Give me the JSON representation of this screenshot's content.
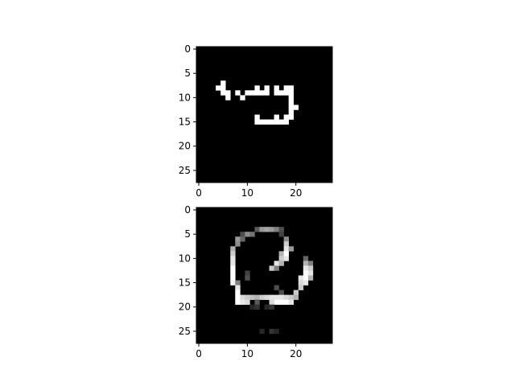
{
  "chart_data": [
    {
      "type": "heatmap",
      "title": "",
      "xlabel": "",
      "ylabel": "",
      "grid_size": [
        28,
        28
      ],
      "xlim": [
        -0.5,
        27.5
      ],
      "ylim": [
        27.5,
        -0.5
      ],
      "x_ticks": [
        0,
        10,
        20
      ],
      "y_ticks": [
        0,
        5,
        10,
        15,
        20,
        25
      ],
      "colormap": "gray",
      "background": "#000000",
      "pixels": [
        [
          7,
          5,
          1.0
        ],
        [
          8,
          4,
          1.0
        ],
        [
          8,
          5,
          1.0
        ],
        [
          9,
          5,
          1.0
        ],
        [
          9,
          6,
          1.0
        ],
        [
          9,
          8,
          1.0
        ],
        [
          9,
          10,
          1.0
        ],
        [
          9,
          11,
          1.0
        ],
        [
          9,
          12,
          1.0
        ],
        [
          9,
          13,
          1.0
        ],
        [
          9,
          14,
          1.0
        ],
        [
          9,
          16,
          1.0
        ],
        [
          9,
          17,
          1.0
        ],
        [
          9,
          18,
          1.0
        ],
        [
          9,
          19,
          1.0
        ],
        [
          8,
          12,
          1.0
        ],
        [
          8,
          14,
          1.0
        ],
        [
          8,
          16,
          1.0
        ],
        [
          8,
          18,
          1.0
        ],
        [
          8,
          19,
          1.0
        ],
        [
          10,
          6,
          1.0
        ],
        [
          10,
          9,
          1.0
        ],
        [
          10,
          19,
          1.0
        ],
        [
          11,
          19,
          1.0
        ],
        [
          12,
          19,
          1.0
        ],
        [
          12,
          20,
          1.0
        ],
        [
          13,
          19,
          1.0
        ],
        [
          14,
          12,
          1.0
        ],
        [
          14,
          16,
          1.0
        ],
        [
          14,
          18,
          1.0
        ],
        [
          14,
          19,
          1.0
        ],
        [
          15,
          12,
          1.0
        ],
        [
          15,
          13,
          1.0
        ],
        [
          15,
          14,
          1.0
        ],
        [
          15,
          15,
          1.0
        ],
        [
          15,
          16,
          1.0
        ],
        [
          15,
          17,
          1.0
        ],
        [
          15,
          18,
          1.0
        ]
      ]
    },
    {
      "type": "heatmap",
      "title": "",
      "xlabel": "",
      "ylabel": "",
      "grid_size": [
        28,
        28
      ],
      "xlim": [
        -0.5,
        27.5
      ],
      "ylim": [
        27.5,
        -0.5
      ],
      "x_ticks": [
        0,
        10,
        20
      ],
      "y_ticks": [
        0,
        5,
        10,
        15,
        20,
        25
      ],
      "colormap": "gray",
      "background": "#000000",
      "pixels": [
        [
          4,
          12,
          0.35
        ],
        [
          4,
          13,
          0.6
        ],
        [
          4,
          14,
          0.65
        ],
        [
          4,
          15,
          0.6
        ],
        [
          4,
          16,
          0.5
        ],
        [
          4,
          17,
          0.3
        ],
        [
          5,
          9,
          0.3
        ],
        [
          5,
          10,
          0.55
        ],
        [
          5,
          11,
          0.45
        ],
        [
          5,
          17,
          0.25
        ],
        [
          6,
          8,
          0.6
        ],
        [
          6,
          9,
          0.4
        ],
        [
          6,
          18,
          0.55
        ],
        [
          7,
          8,
          0.55
        ],
        [
          7,
          18,
          0.8
        ],
        [
          8,
          7,
          0.7
        ],
        [
          8,
          18,
          0.9
        ],
        [
          8,
          19,
          0.6
        ],
        [
          9,
          7,
          0.8
        ],
        [
          9,
          17,
          0.7
        ],
        [
          9,
          18,
          1.0
        ],
        [
          10,
          7,
          0.9
        ],
        [
          10,
          17,
          0.8
        ],
        [
          10,
          18,
          0.9
        ],
        [
          10,
          22,
          0.4
        ],
        [
          11,
          7,
          0.9
        ],
        [
          11,
          16,
          0.9
        ],
        [
          11,
          17,
          0.7
        ],
        [
          11,
          22,
          0.7
        ],
        [
          11,
          23,
          0.5
        ],
        [
          12,
          7,
          1.0
        ],
        [
          12,
          15,
          0.8
        ],
        [
          12,
          16,
          0.5
        ],
        [
          12,
          22,
          0.9
        ],
        [
          12,
          23,
          0.8
        ],
        [
          13,
          7,
          1.0
        ],
        [
          13,
          10,
          0.25
        ],
        [
          13,
          22,
          1.0
        ],
        [
          13,
          23,
          0.9
        ],
        [
          14,
          7,
          1.0
        ],
        [
          14,
          10,
          0.3
        ],
        [
          14,
          21,
          0.9
        ],
        [
          14,
          22,
          1.0
        ],
        [
          14,
          23,
          0.7
        ],
        [
          15,
          7,
          0.95
        ],
        [
          15,
          8,
          0.5
        ],
        [
          15,
          21,
          0.85
        ],
        [
          15,
          22,
          0.9
        ],
        [
          16,
          8,
          0.9
        ],
        [
          16,
          16,
          0.3
        ],
        [
          16,
          21,
          0.8
        ],
        [
          17,
          8,
          1.0
        ],
        [
          17,
          17,
          0.3
        ],
        [
          17,
          20,
          0.8
        ],
        [
          18,
          8,
          1.0
        ],
        [
          18,
          9,
          0.85
        ],
        [
          18,
          10,
          0.8
        ],
        [
          18,
          11,
          0.75
        ],
        [
          18,
          12,
          0.7
        ],
        [
          18,
          13,
          0.8
        ],
        [
          18,
          14,
          0.85
        ],
        [
          18,
          15,
          0.9
        ],
        [
          18,
          16,
          0.9
        ],
        [
          18,
          17,
          0.9
        ],
        [
          18,
          18,
          0.85
        ],
        [
          18,
          19,
          0.8
        ],
        [
          18,
          20,
          0.7
        ],
        [
          19,
          8,
          1.0
        ],
        [
          19,
          9,
          0.9
        ],
        [
          19,
          10,
          0.85
        ],
        [
          19,
          12,
          0.35
        ],
        [
          19,
          15,
          0.85
        ],
        [
          19,
          16,
          1.0
        ],
        [
          19,
          17,
          1.0
        ],
        [
          19,
          18,
          1.0
        ],
        [
          19,
          19,
          0.9
        ],
        [
          20,
          11,
          0.15
        ],
        [
          20,
          12,
          0.2
        ],
        [
          20,
          14,
          0.15
        ],
        [
          20,
          15,
          0.2
        ],
        [
          25,
          13,
          0.15
        ],
        [
          25,
          15,
          0.2
        ],
        [
          25,
          16,
          0.15
        ]
      ]
    }
  ]
}
